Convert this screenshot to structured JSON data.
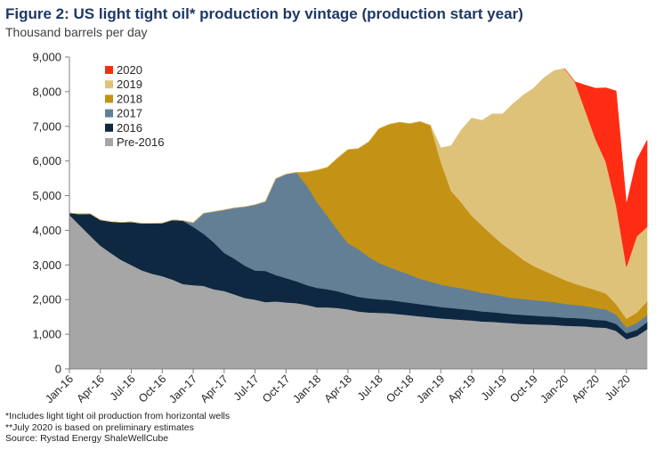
{
  "header": {
    "title_lead": "Figure 2:",
    "title_rest": "US light tight oil* production by vintage (production start year)",
    "subtitle": "Thousand barrels per day"
  },
  "footnotes": [
    "*Includes light tight oil production from horizontal wells",
    "**July 2020 is based on preliminary estimates",
    "Source: Rystad Energy ShaleWellCube"
  ],
  "colors": {
    "Pre-2016": "#a6a6a6",
    "2016": "#0e2841",
    "2017": "#637f96",
    "2018": "#c49316",
    "2019": "#dfc27a",
    "2020": "#ff2c14"
  },
  "chart_data": {
    "type": "area",
    "stacked": true,
    "ylim": [
      0,
      9000
    ],
    "yticks": [
      "0",
      "1,000",
      "2,000",
      "3,000",
      "4,000",
      "5,000",
      "6,000",
      "7,000",
      "8,000",
      "9,000"
    ],
    "ytick_values": [
      0,
      1000,
      2000,
      3000,
      4000,
      5000,
      6000,
      7000,
      8000,
      9000
    ],
    "x_start": "Jan-16",
    "xtick_labels": [
      "Jan-16",
      "Apr-16",
      "Jul-16",
      "Oct-16",
      "Jan-17",
      "Apr-17",
      "Jul-17",
      "Oct-17",
      "Jan-18",
      "Apr-18",
      "Jul-18",
      "Oct-18",
      "Jan-19",
      "Apr-19",
      "Jul-19",
      "Oct-19",
      "Jan-20",
      "Apr-20",
      "Jul-20"
    ],
    "legend_position": "top-left",
    "legend_order": [
      "2020",
      "2019",
      "2018",
      "2017",
      "2016",
      "Pre-2016"
    ],
    "series": [
      {
        "name": "Pre-2016",
        "values": [
          4450,
          4150,
          3850,
          3560,
          3350,
          3150,
          3000,
          2850,
          2750,
          2680,
          2580,
          2450,
          2420,
          2400,
          2300,
          2250,
          2150,
          2050,
          2000,
          1930,
          1950,
          1920,
          1900,
          1850,
          1780,
          1780,
          1760,
          1720,
          1660,
          1630,
          1620,
          1610,
          1580,
          1550,
          1520,
          1490,
          1460,
          1440,
          1420,
          1400,
          1370,
          1360,
          1340,
          1320,
          1300,
          1290,
          1280,
          1270,
          1250,
          1240,
          1230,
          1200,
          1190,
          1100,
          860,
          950,
          1150
        ]
      },
      {
        "name": "2016",
        "values": [
          50,
          320,
          630,
          740,
          900,
          1080,
          1240,
          1350,
          1450,
          1530,
          1720,
          1830,
          1680,
          1500,
          1350,
          1100,
          1030,
          930,
          840,
          900,
          760,
          700,
          630,
          570,
          560,
          520,
          480,
          440,
          420,
          410,
          390,
          380,
          370,
          360,
          350,
          340,
          330,
          320,
          310,
          300,
          290,
          280,
          270,
          260,
          260,
          250,
          240,
          240,
          230,
          230,
          220,
          220,
          210,
          200,
          170,
          180,
          200
        ]
      },
      {
        "name": "2017",
        "values": [
          0,
          0,
          0,
          0,
          0,
          0,
          0,
          0,
          0,
          0,
          0,
          0,
          120,
          590,
          890,
          1240,
          1470,
          1700,
          1900,
          2000,
          2780,
          3000,
          3140,
          2880,
          2480,
          2120,
          1770,
          1470,
          1380,
          1200,
          1050,
          950,
          880,
          810,
          730,
          690,
          650,
          620,
          600,
          570,
          540,
          520,
          490,
          470,
          460,
          450,
          440,
          420,
          400,
          380,
          370,
          340,
          320,
          270,
          170,
          200,
          200
        ]
      },
      {
        "name": "2018",
        "values": [
          0,
          0,
          0,
          0,
          0,
          0,
          0,
          0,
          0,
          0,
          0,
          0,
          0,
          0,
          0,
          0,
          0,
          0,
          0,
          0,
          0,
          0,
          0,
          380,
          920,
          1400,
          2080,
          2700,
          2900,
          3310,
          3870,
          4120,
          4290,
          4360,
          4540,
          4510,
          3540,
          2760,
          2470,
          2150,
          1940,
          1700,
          1500,
          1330,
          1130,
          980,
          880,
          770,
          690,
          610,
          550,
          520,
          460,
          300,
          250,
          300,
          400
        ]
      },
      {
        "name": "2019",
        "values": [
          0,
          0,
          0,
          0,
          0,
          0,
          0,
          0,
          0,
          0,
          0,
          0,
          0,
          0,
          0,
          0,
          0,
          0,
          0,
          0,
          0,
          0,
          0,
          0,
          0,
          0,
          0,
          0,
          0,
          0,
          0,
          0,
          0,
          0,
          0,
          0,
          400,
          1300,
          2100,
          2820,
          3030,
          3500,
          3760,
          4270,
          4750,
          5130,
          5560,
          5910,
          6100,
          5830,
          5100,
          4350,
          3800,
          2850,
          1500,
          2200,
          2150
        ]
      },
      {
        "name": "2020",
        "values": [
          null,
          null,
          null,
          null,
          null,
          null,
          null,
          null,
          null,
          null,
          null,
          null,
          null,
          null,
          null,
          null,
          null,
          null,
          null,
          null,
          null,
          null,
          null,
          null,
          null,
          null,
          null,
          null,
          null,
          null,
          null,
          null,
          null,
          null,
          null,
          null,
          null,
          null,
          null,
          null,
          null,
          null,
          null,
          null,
          null,
          null,
          null,
          null,
          0,
          0,
          720,
          1470,
          2130,
          3300,
          1800,
          2200,
          2500
        ]
      }
    ]
  }
}
